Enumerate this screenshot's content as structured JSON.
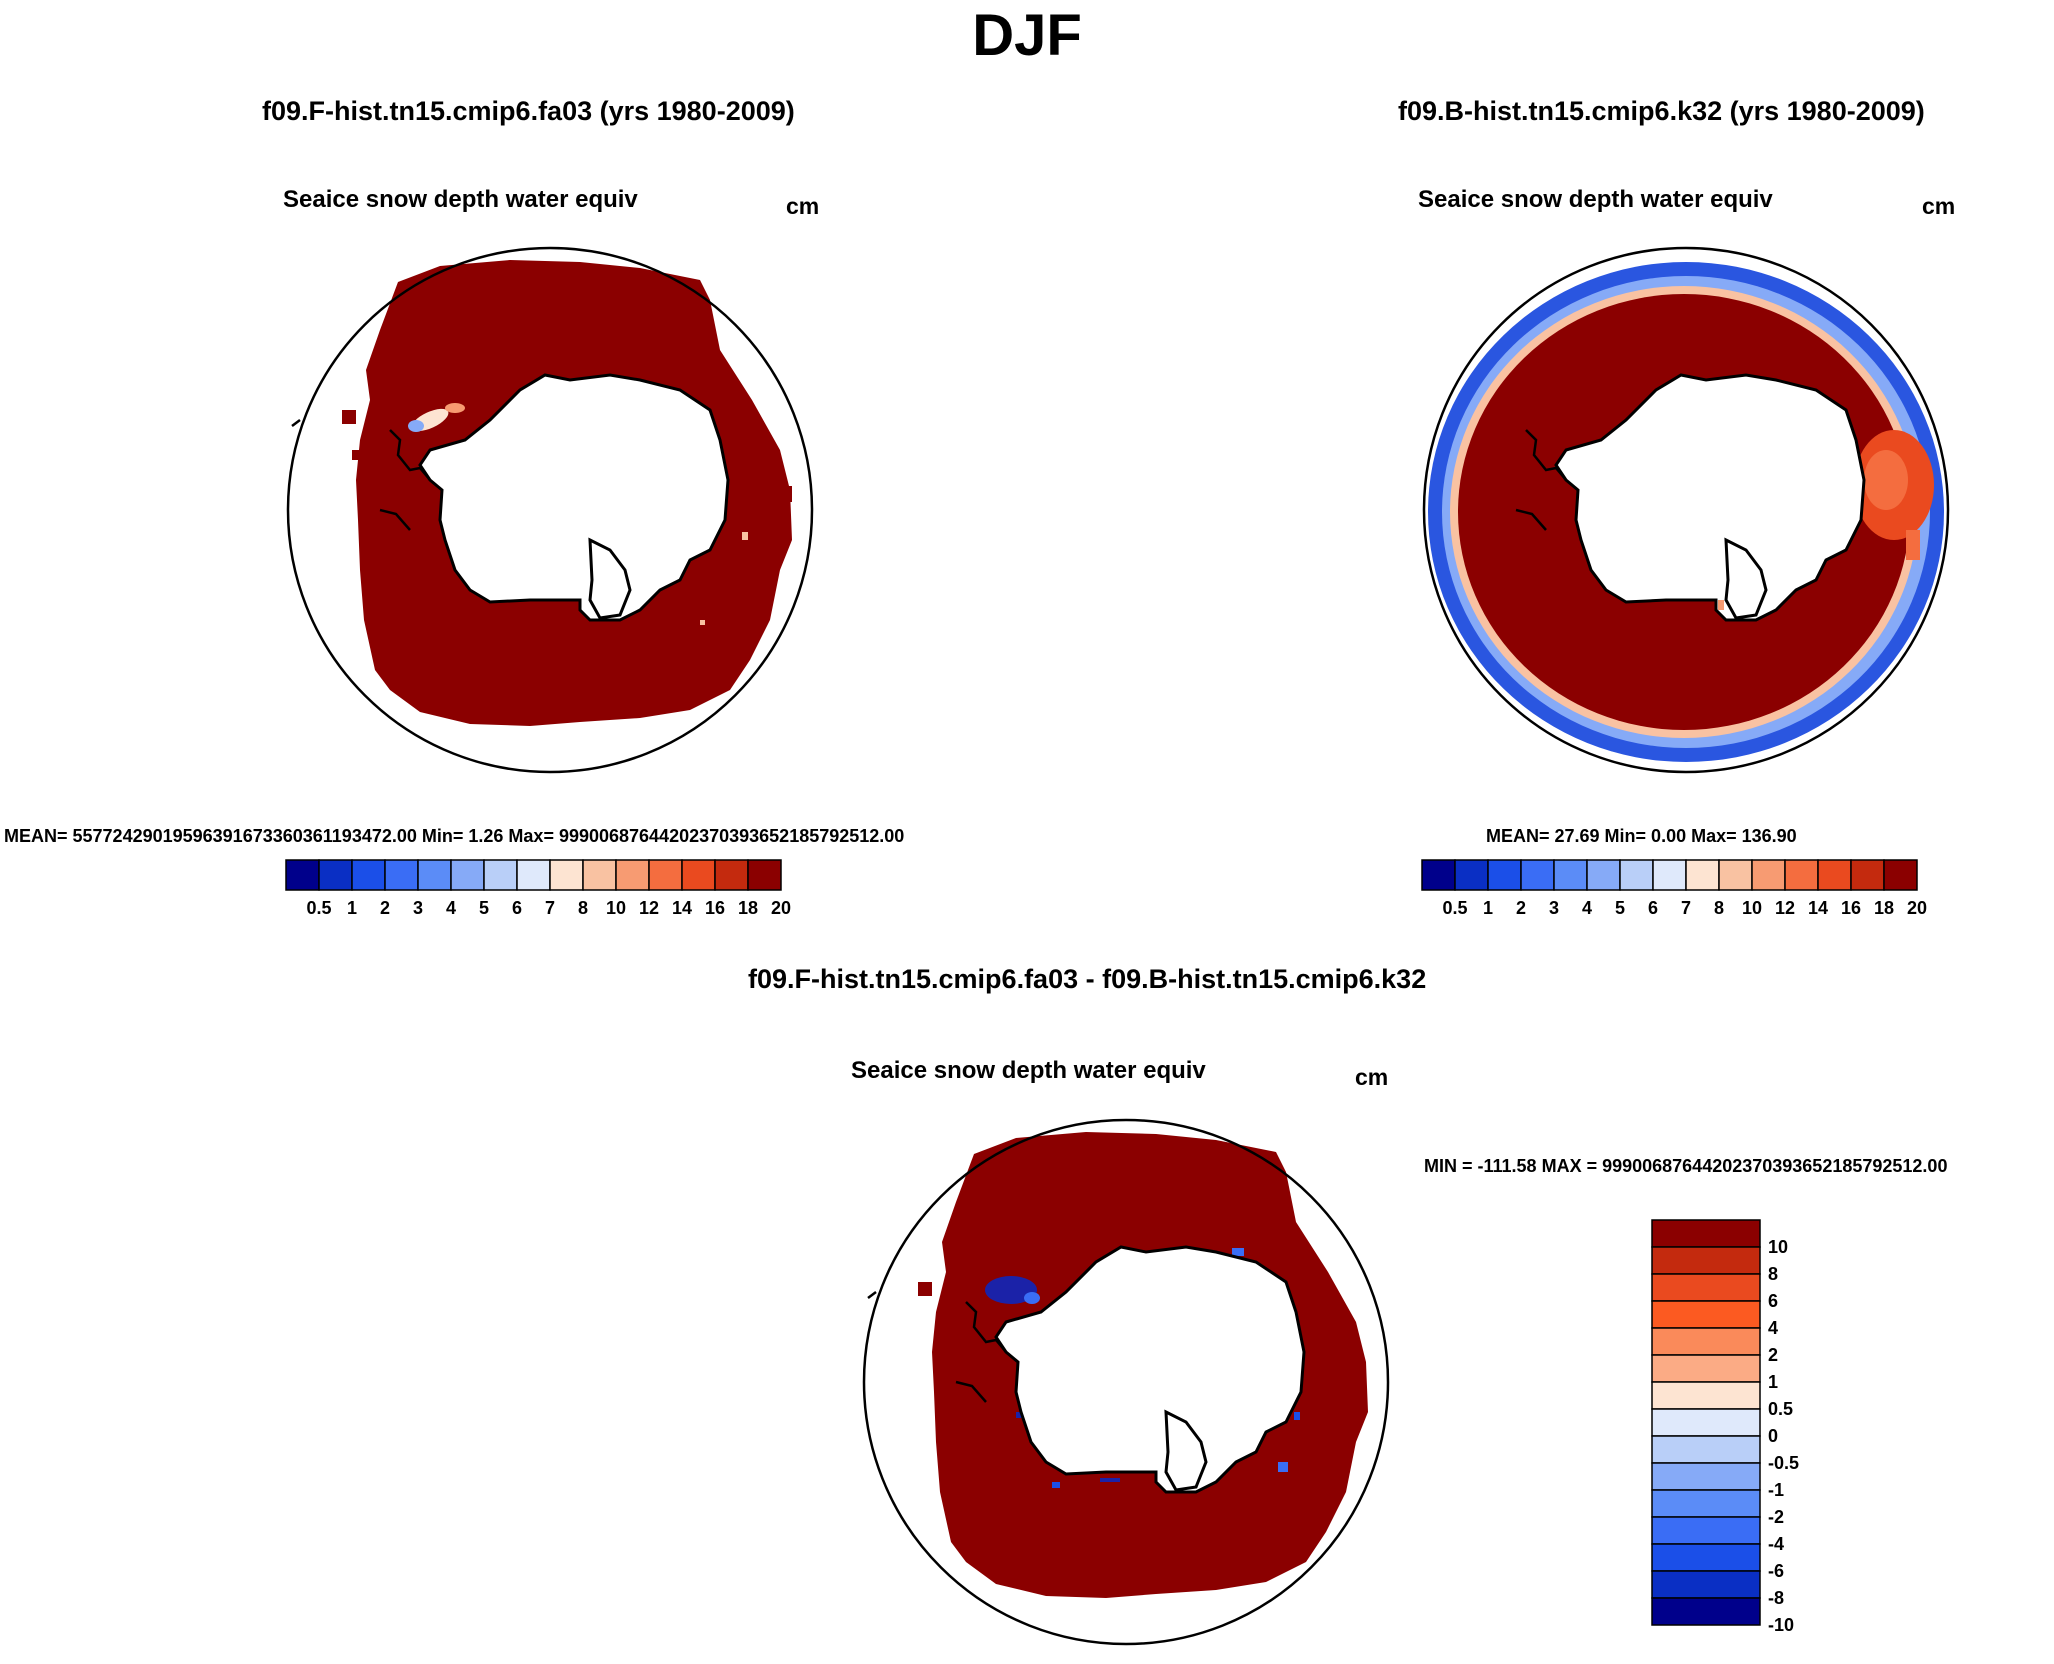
{
  "figure": {
    "season_title": "DJF"
  },
  "panels": [
    {
      "case_title": "f09.F-hist.tn15.cmip6.fa03 (yrs 1980-2009)",
      "variable": "Seaice snow depth water equiv",
      "units": "cm",
      "stats": "MEAN= 557724290195963916733603611934​72.00  Min=   1.26  Max= 9990068764420237039365218579251​2.00",
      "colorbar_labels": [
        "0.5",
        "1",
        "2",
        "3",
        "4",
        "5",
        "6",
        "7",
        "8",
        "10",
        "12",
        "14",
        "16",
        "18",
        "20"
      ]
    },
    {
      "case_title": "f09.B-hist.tn15.cmip6.k32 (yrs 1980-2009)",
      "variable": "Seaice snow depth water equiv",
      "units": "cm",
      "stats": "MEAN=  27.69  Min=   0.00  Max= 136.90",
      "colorbar_labels": [
        "0.5",
        "1",
        "2",
        "3",
        "4",
        "5",
        "6",
        "7",
        "8",
        "10",
        "12",
        "14",
        "16",
        "18",
        "20"
      ]
    },
    {
      "case_title": "f09.F-hist.tn15.cmip6.fa03 - f09.B-hist.tn15.cmip6.k32",
      "variable": "Seaice snow depth water equiv",
      "units": "cm",
      "stats": "MIN = -111.58 MAX = 9990068764420237039365218579251​2.00",
      "colorbar_labels": [
        "10",
        "8",
        "6",
        "4",
        "2",
        "1",
        "0.5",
        "0",
        "-0.5",
        "-1",
        "-2",
        "-4",
        "-6",
        "-8",
        "-10"
      ]
    }
  ],
  "colors": {
    "abs_scale": [
      "#00008b",
      "#0a2fc4",
      "#1b4fe8",
      "#3a6df5",
      "#5b8cf7",
      "#86aaf7",
      "#b9cff8",
      "#dfe9fb",
      "#fde4d2",
      "#f9c2a2",
      "#f79b72",
      "#f46d3f",
      "#ea4a1f",
      "#c42a0e",
      "#8b0000"
    ],
    "diff_scale": [
      "#8b0000",
      "#c42a0e",
      "#ea4a1f",
      "#fc5a21",
      "#fa8a5a",
      "#fbab85",
      "#fde4d2",
      "#dfe9fb",
      "#b9cff8",
      "#86aaf7",
      "#5b8cf7",
      "#3a6df5",
      "#1b4fe8",
      "#0a2fc4",
      "#00008b"
    ],
    "sea_ice": "#8b0000",
    "sea_ice_edge_blue": "#2a56e0"
  }
}
